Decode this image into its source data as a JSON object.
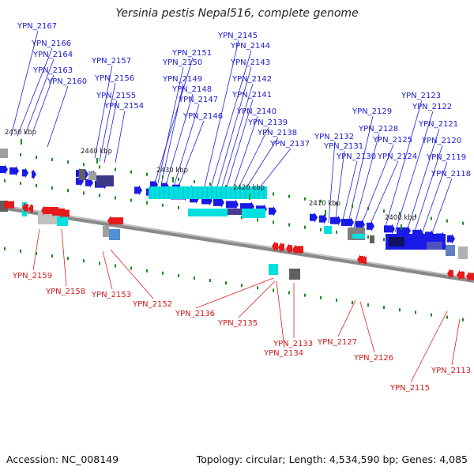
{
  "title": "Yersinia pestis Nepal516, complete genome",
  "footer": {
    "accession": "Accession: NC_008149",
    "topology": "Topology: circular; Length: 4,534,590 bp; Genes: 4,085"
  },
  "colors": {
    "forward": "#1a1ae6",
    "reverse": "#e61a1a",
    "backbone": "#8a8a8a",
    "tick": "#1a8a1a",
    "highlight": "#00e0e0",
    "dark_block": "#2a2a80"
  },
  "scale_labels": [
    "2450 kbp",
    "2440 kbp",
    "2430 kbp",
    "2420 kbp",
    "2410 kbp",
    "2400 kbp"
  ],
  "forward_genes": [
    "YPN_2167",
    "YPN_2166",
    "YPN_2164",
    "YPN_2163",
    "YPN_2160",
    "YPN_2157",
    "YPN_2156",
    "YPN_2155",
    "YPN_2154",
    "YPN_2151",
    "YPN_2150",
    "YPN_2149",
    "YPN_2148",
    "YPN_2147",
    "YPN_2146",
    "YPN_2145",
    "YPN_2144",
    "YPN_2143",
    "YPN_2142",
    "YPN_2141",
    "YPN_2140",
    "YPN_2139",
    "YPN_2138",
    "YPN_2137",
    "YPN_2132",
    "YPN_2131",
    "YPN_2130",
    "YPN_2129",
    "YPN_2128",
    "YPN_2125",
    "YPN_2124",
    "YPN_2123",
    "YPN_2122",
    "YPN_2121",
    "YPN_2120",
    "YPN_2119",
    "YPN_2118"
  ],
  "reverse_genes": [
    "YPN_2159",
    "YPN_2158",
    "YPN_2153",
    "YPN_2152",
    "YPN_2136",
    "YPN_2135",
    "YPN_2134",
    "YPN_2133",
    "YPN_2127",
    "YPN_2126",
    "YPN_2115",
    "YPN_2113"
  ]
}
